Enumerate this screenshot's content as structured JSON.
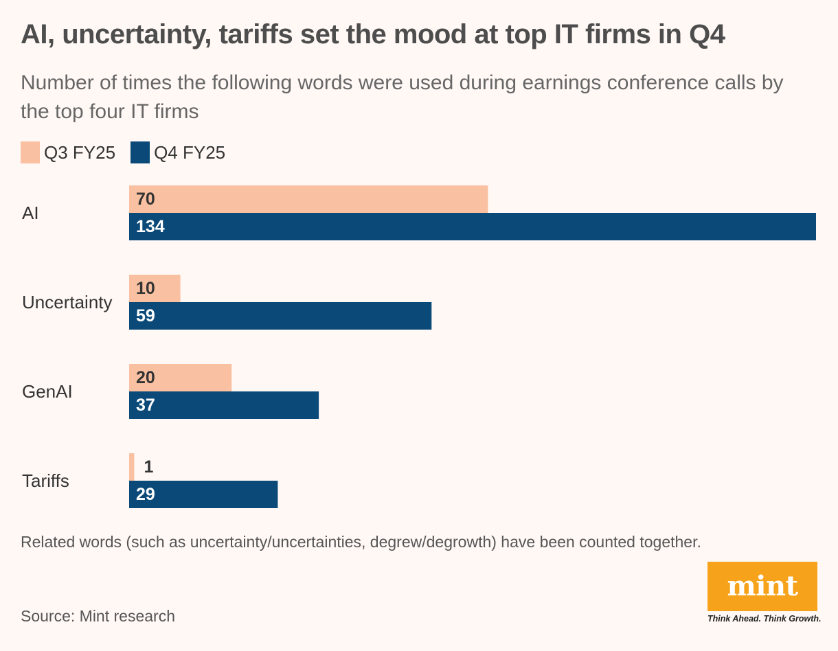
{
  "header": {
    "title": "AI, uncertainty, tariffs set the mood at top IT firms in Q4",
    "subtitle": "Number of times the following words were used during earnings conference calls by the top four IT firms"
  },
  "colors": {
    "q3": "#f9c1a1",
    "q4": "#0b4a78",
    "background": "#fff8f5",
    "logo": "#f7a21b"
  },
  "chart_data": {
    "type": "bar",
    "orientation": "horizontal",
    "title": "AI, uncertainty, tariffs set the mood at top IT firms in Q4",
    "subtitle": "Number of times the following words were used during earnings conference calls by the top four IT firms",
    "categories": [
      "AI",
      "Uncertainty",
      "GenAI",
      "Tariffs"
    ],
    "series": [
      {
        "name": "Q3 FY25",
        "values": [
          70,
          10,
          20,
          1
        ]
      },
      {
        "name": "Q4 FY25",
        "values": [
          134,
          59,
          37,
          29
        ]
      }
    ],
    "xlim": [
      0,
      134
    ],
    "xlabel": "",
    "ylabel": "",
    "grid": false,
    "legend": "top-left",
    "data_labels": true
  },
  "footer": {
    "note": "Related words (such as uncertainty/uncertainties, degrew/degrowth) have been counted together.",
    "source": "Source: Mint research"
  },
  "logo": {
    "word": "mint",
    "tagline": "Think Ahead. Think Growth."
  }
}
